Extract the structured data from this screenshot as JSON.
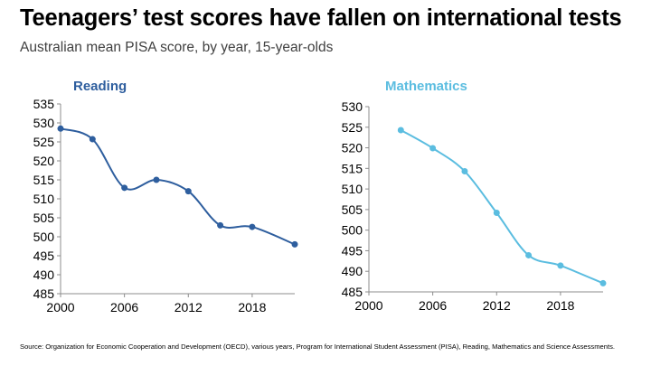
{
  "header": {
    "title": "Teenagers’ test scores have fallen on international tests",
    "subtitle": "Australian mean PISA score, by year, 15-year-olds"
  },
  "footer": {
    "source": "Source: Organization for Economic Cooperation and Development (OECD), various years, Program for International Student Assessment (PISA), Reading, Mathematics and Science Assessments."
  },
  "colors": {
    "reading": "#2e5e9e",
    "math": "#5bbde0"
  },
  "chart_data": [
    {
      "type": "line",
      "title": "Reading",
      "xlabel": "",
      "ylabel": "",
      "x": [
        2000,
        2003,
        2006,
        2009,
        2012,
        2015,
        2018,
        2022
      ],
      "values": [
        528.5,
        525.7,
        512.9,
        515.0,
        512.0,
        503.0,
        502.6,
        498.0
      ],
      "ylim": [
        485,
        535
      ],
      "xlim": [
        2000,
        2022
      ],
      "yticks": [
        535,
        530,
        525,
        520,
        515,
        510,
        505,
        500,
        495,
        490,
        485
      ],
      "xticks": [
        "2000",
        "2006",
        "2012",
        "2018"
      ],
      "grid": false,
      "legend": "none"
    },
    {
      "type": "line",
      "title": "Mathematics",
      "xlabel": "",
      "ylabel": "",
      "x": [
        2003,
        2006,
        2009,
        2012,
        2015,
        2018,
        2022
      ],
      "values": [
        524.3,
        519.9,
        514.3,
        504.2,
        493.9,
        491.4,
        487.1
      ],
      "ylim": [
        485,
        530
      ],
      "xlim": [
        2000,
        2022
      ],
      "yticks": [
        530,
        525,
        520,
        515,
        510,
        505,
        500,
        495,
        490,
        485
      ],
      "xticks": [
        "2000",
        "2006",
        "2012",
        "2018"
      ],
      "grid": false,
      "legend": "none"
    }
  ]
}
